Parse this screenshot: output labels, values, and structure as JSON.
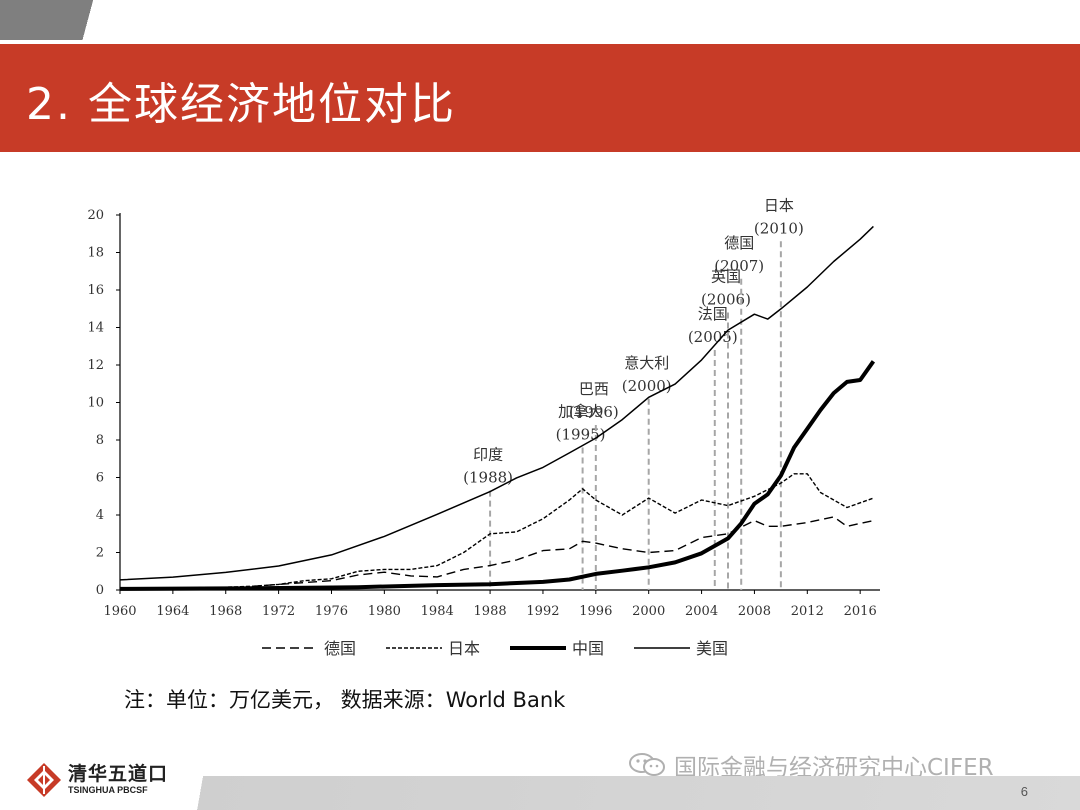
{
  "slide": {
    "title": "2. 全球经济地位对比",
    "note_prefix": "注：单位：万亿美元， 数据来源：",
    "note_source": "World Bank",
    "watermark": "国际金融与经济研究中心CIFER",
    "page_number": "6",
    "logo_cn": "清华五道口",
    "logo_en": "TSINGHUA PBCSF"
  },
  "colors": {
    "title_bar": "#c73b27",
    "logo_red": "#c73b27"
  },
  "icons": {
    "watermark": "wechat-icon",
    "logo": "pbcsf-logo-icon"
  },
  "chart_data": {
    "type": "line",
    "ylim": [
      0,
      20
    ],
    "yticks": [
      "0",
      "2",
      "4",
      "6",
      "8",
      "10",
      "12",
      "14",
      "16",
      "18",
      "20"
    ],
    "xlim": [
      1960,
      2017.5
    ],
    "xticks": [
      "1960",
      "1964",
      "1968",
      "1972",
      "1976",
      "1980",
      "1984",
      "1988",
      "1992",
      "1996",
      "2000",
      "2004",
      "2008",
      "2012",
      "2016"
    ],
    "legend_position": "bottom",
    "series": [
      {
        "name": "德国",
        "style": "dashed",
        "x": [
          1970,
          1972,
          1974,
          1976,
          1978,
          1980,
          1982,
          1984,
          1986,
          1988,
          1990,
          1992,
          1994,
          1995,
          1996,
          1998,
          2000,
          2002,
          2004,
          2006,
          2008,
          2009,
          2010,
          2012,
          2014,
          2015,
          2017
        ],
        "y": [
          0.2,
          0.3,
          0.4,
          0.5,
          0.8,
          0.95,
          0.75,
          0.7,
          1.1,
          1.3,
          1.6,
          2.1,
          2.2,
          2.6,
          2.5,
          2.2,
          2.0,
          2.1,
          2.8,
          3.0,
          3.7,
          3.4,
          3.4,
          3.6,
          3.9,
          3.4,
          3.7
        ]
      },
      {
        "name": "日本",
        "style": "dotted",
        "x": [
          1960,
          1964,
          1968,
          1970,
          1972,
          1974,
          1976,
          1978,
          1980,
          1982,
          1984,
          1986,
          1988,
          1990,
          1992,
          1994,
          1995,
          1996,
          1998,
          2000,
          2002,
          2004,
          2006,
          2008,
          2010,
          2011,
          2012,
          2013,
          2015,
          2017
        ],
        "y": [
          0.05,
          0.1,
          0.15,
          0.2,
          0.3,
          0.5,
          0.6,
          1.0,
          1.1,
          1.1,
          1.3,
          2.0,
          3.0,
          3.1,
          3.8,
          4.8,
          5.4,
          4.8,
          4.0,
          4.9,
          4.1,
          4.8,
          4.5,
          5.0,
          5.7,
          6.2,
          6.2,
          5.2,
          4.4,
          4.9
        ]
      },
      {
        "name": "中国",
        "style": "bold",
        "x": [
          1960,
          1970,
          1978,
          1984,
          1988,
          1992,
          1994,
          1996,
          1998,
          2000,
          2002,
          2004,
          2006,
          2007,
          2008,
          2009,
          2010,
          2011,
          2012,
          2013,
          2014,
          2015,
          2016,
          2017
        ],
        "y": [
          0.06,
          0.09,
          0.15,
          0.26,
          0.31,
          0.43,
          0.56,
          0.86,
          1.03,
          1.21,
          1.47,
          1.96,
          2.75,
          3.55,
          4.6,
          5.1,
          6.1,
          7.6,
          8.6,
          9.6,
          10.5,
          11.1,
          11.2,
          12.2
        ]
      },
      {
        "name": "美国",
        "style": "solid",
        "x": [
          1960,
          1964,
          1968,
          1972,
          1976,
          1980,
          1984,
          1988,
          1990,
          1992,
          1994,
          1996,
          1998,
          2000,
          2002,
          2004,
          2006,
          2008,
          2009,
          2010,
          2012,
          2014,
          2016,
          2017
        ],
        "y": [
          0.54,
          0.69,
          0.94,
          1.28,
          1.87,
          2.86,
          4.04,
          5.25,
          5.98,
          6.54,
          7.31,
          8.1,
          9.09,
          10.28,
          10.98,
          12.27,
          13.86,
          14.71,
          14.45,
          14.99,
          16.16,
          17.52,
          18.71,
          19.39
        ]
      }
    ],
    "annotations": [
      {
        "year": 1988,
        "ytop": 5.3,
        "label": "印度",
        "sub": "(1988)"
      },
      {
        "year": 1995,
        "ytop": 7.6,
        "label": "加拿大",
        "sub": "(1995)"
      },
      {
        "year": 1996,
        "ytop": 8.8,
        "label": "巴西",
        "sub": "(1996)"
      },
      {
        "year": 2000,
        "ytop": 10.2,
        "label": "意大利",
        "sub": "(2000)"
      },
      {
        "year": 2005,
        "ytop": 12.8,
        "label": "法国",
        "sub": "(2005)"
      },
      {
        "year": 2006,
        "ytop": 14.8,
        "label": "英国",
        "sub": "(2006)"
      },
      {
        "year": 2007,
        "ytop": 16.6,
        "label": "德国",
        "sub": "(2007)"
      },
      {
        "year": 2010,
        "ytop": 18.6,
        "label": "日本",
        "sub": "(2010)"
      }
    ]
  }
}
